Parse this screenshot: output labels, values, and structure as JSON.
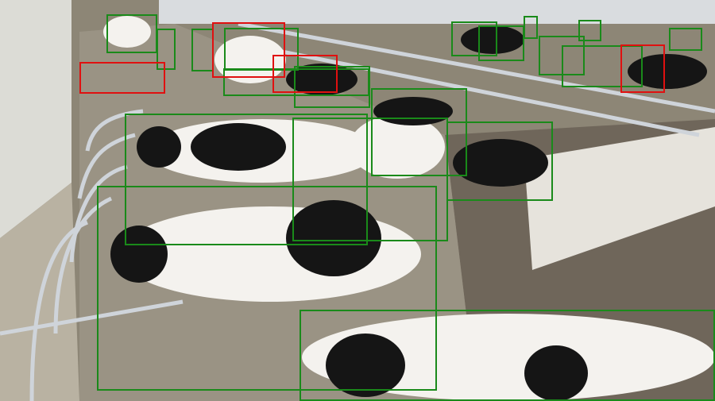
{
  "image": {
    "subject": "cow",
    "colors": {
      "green_box": "#1a8a1a",
      "red_box": "#e01010",
      "floor": "#8d8676",
      "stall_rail": "#cfd4da",
      "wall": "#dcdcd6"
    }
  },
  "detections": [
    {
      "label": "cow",
      "status": "green"
    },
    {
      "label": "cow",
      "status": "green"
    },
    {
      "label": "cow",
      "status": "green"
    },
    {
      "label": "cow",
      "status": "green"
    },
    {
      "label": "cow",
      "status": "green"
    },
    {
      "label": "cow",
      "status": "green"
    },
    {
      "label": "cow",
      "status": "green"
    },
    {
      "label": "cow",
      "status": "green"
    },
    {
      "label": "cow",
      "status": "green"
    },
    {
      "label": "cow",
      "status": "green"
    },
    {
      "label": "cow",
      "status": "green"
    },
    {
      "label": "cow",
      "status": "green"
    },
    {
      "label": "cow",
      "status": "green"
    },
    {
      "label": "cow",
      "status": "green"
    },
    {
      "label": "cow",
      "status": "green"
    },
    {
      "label": "cow",
      "status": "green"
    },
    {
      "label": "cow",
      "status": "green"
    },
    {
      "label": "cow",
      "status": "green"
    },
    {
      "label": "cow",
      "status": "green"
    },
    {
      "label": "cow",
      "status": "red"
    },
    {
      "label": "cow",
      "status": "red"
    },
    {
      "label": "cow",
      "status": "red"
    },
    {
      "label": "cow",
      "status": "red"
    }
  ]
}
